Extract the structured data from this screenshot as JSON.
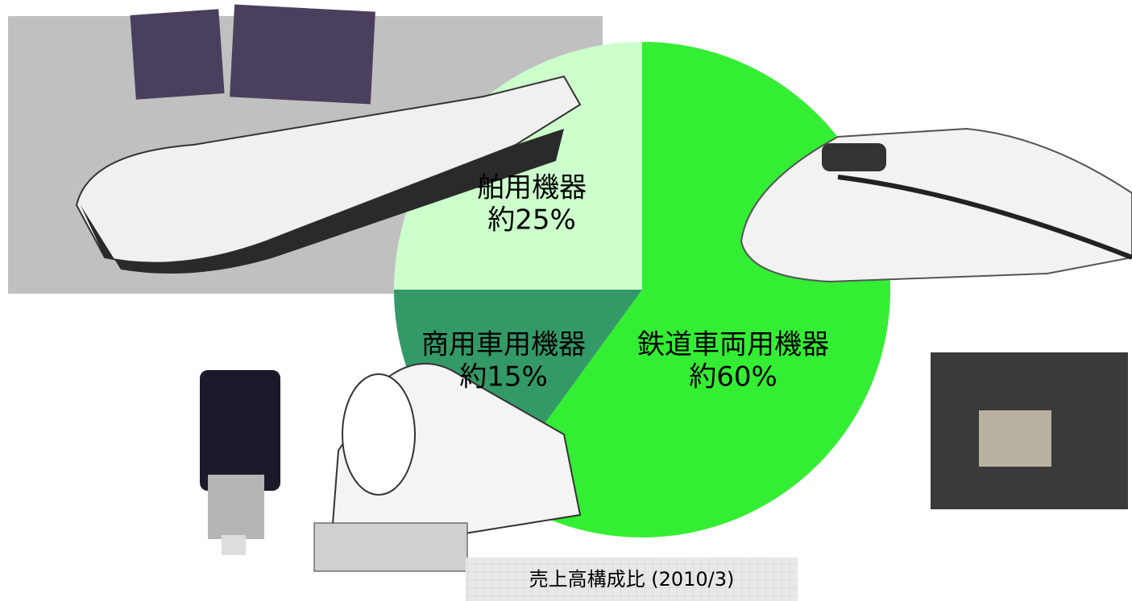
{
  "chart_data": {
    "type": "pie",
    "title": "売上高構成比 (2010/3)",
    "categories": [
      "鉄道車両用機器",
      "商用車用機器",
      "舶用機器"
    ],
    "values": [
      60,
      15,
      25
    ],
    "value_labels": [
      "約60%",
      "約15%",
      "約25%"
    ],
    "colors": [
      "#33ee33",
      "#339966",
      "#ccffcc"
    ]
  }
}
